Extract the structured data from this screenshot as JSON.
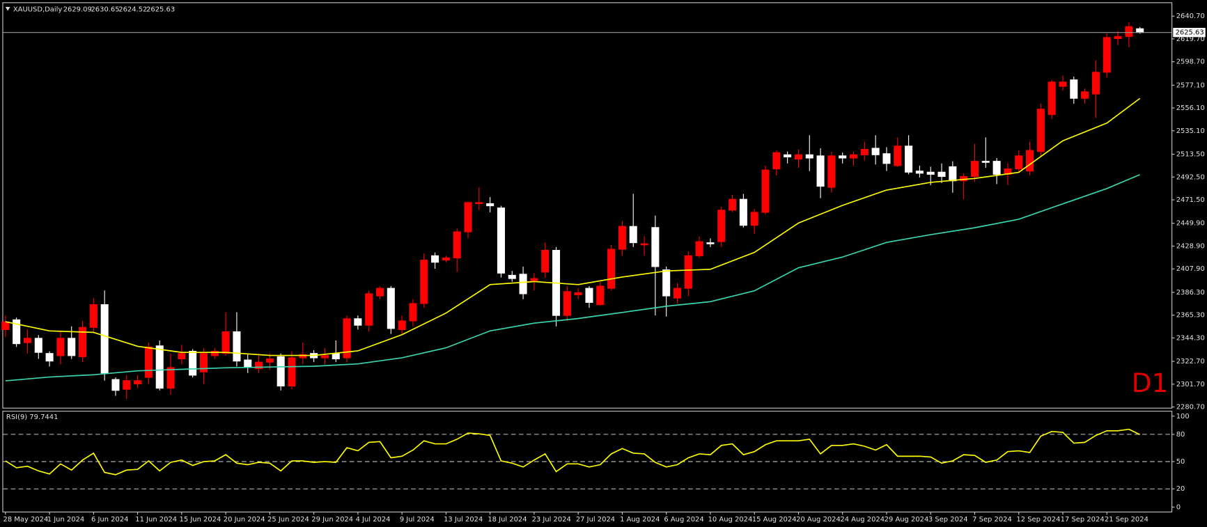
{
  "chart_data": [
    {
      "type": "candlestick",
      "title": "XAUUSD,Daily",
      "annotation": "D1",
      "categories": [
        "28 May 2024",
        null,
        null,
        null,
        "1 Jun 2024",
        null,
        null,
        null,
        "6 Jun 2024",
        null,
        null,
        null,
        "11 Jun 2024",
        null,
        null,
        null,
        "15 Jun 2024",
        null,
        null,
        null,
        "20 Jun 2024",
        null,
        null,
        null,
        "25 Jun 2024",
        null,
        null,
        null,
        "29 Jun 2024",
        null,
        null,
        null,
        "4 Jul 2024",
        null,
        null,
        null,
        "9 Jul 2024",
        null,
        null,
        null,
        "13 Jul 2024",
        null,
        null,
        null,
        "18 Jul 2024",
        null,
        null,
        null,
        "23 Jul 2024",
        null,
        null,
        null,
        "27 Jul 2024",
        null,
        null,
        null,
        "1 Aug 2024",
        null,
        null,
        null,
        "6 Aug 2024",
        null,
        null,
        null,
        "10 Aug 2024",
        null,
        null,
        null,
        "15 Aug 2024",
        null,
        null,
        null,
        "20 Aug 2024",
        null,
        null,
        null,
        "24 Aug 2024",
        null,
        null,
        null,
        "29 Aug 2024",
        null,
        null,
        null,
        "3 Sep 2024",
        null,
        null,
        null,
        "7 Sep 2024",
        null,
        null,
        null,
        "12 Sep 2024",
        null,
        null,
        null,
        "17 Sep 2024",
        null,
        null,
        null,
        "21 Sep 2024",
        null,
        null,
        null
      ],
      "open": [
        2352,
        2361,
        2340,
        2344,
        2330,
        2328,
        2344,
        2327,
        2354,
        2375,
        2306,
        2297,
        2302,
        2308,
        2337,
        2298,
        2325,
        2332,
        2313,
        2328,
        2330,
        2350,
        2324,
        2316,
        2322,
        2327,
        2300,
        2326,
        2330,
        2326,
        2330,
        2326,
        2362,
        2356,
        2383,
        2390,
        2352,
        2360,
        2376,
        2420,
        2416,
        2418,
        2442,
        2468,
        2468,
        2464,
        2402,
        2403,
        2397,
        2405,
        2425,
        2365,
        2384,
        2390,
        2375,
        2390,
        2426,
        2447,
        2430,
        2446,
        2407,
        2381,
        2390,
        2420,
        2432,
        2433,
        2462,
        2472,
        2448,
        2460,
        2500,
        2513,
        2509,
        2513,
        2512,
        2483,
        2512,
        2510,
        2513,
        2519,
        2514,
        2503,
        2521,
        2498,
        2497,
        2497,
        2502,
        2489,
        2493,
        2507,
        2507,
        2495,
        2500,
        2498,
        2516,
        2550,
        2576,
        2582,
        2565,
        2569,
        2589,
        2620,
        2622,
        2629.09
      ],
      "high": [
        2365,
        2363,
        2352,
        2347,
        2332,
        2350,
        2355,
        2360,
        2381,
        2388,
        2308,
        2310,
        2310,
        2340,
        2342,
        2330,
        2338,
        2334,
        2335,
        2335,
        2368,
        2368,
        2330,
        2330,
        2330,
        2330,
        2332,
        2340,
        2333,
        2335,
        2342,
        2365,
        2365,
        2388,
        2392,
        2392,
        2365,
        2380,
        2422,
        2423,
        2420,
        2445,
        2470,
        2483,
        2474,
        2466,
        2406,
        2410,
        2404,
        2432,
        2428,
        2392,
        2390,
        2392,
        2396,
        2430,
        2452,
        2477,
        2438,
        2457,
        2410,
        2395,
        2424,
        2438,
        2436,
        2465,
        2476,
        2477,
        2463,
        2503,
        2517,
        2516,
        2518,
        2531,
        2519,
        2516,
        2515,
        2516,
        2525,
        2531,
        2520,
        2529,
        2531,
        2503,
        2502,
        2505,
        2507,
        2496,
        2523,
        2529,
        2510,
        2505,
        2517,
        2525,
        2560,
        2582,
        2586,
        2585,
        2574,
        2600,
        2625,
        2627,
        2635,
        2630.65
      ],
      "low": [
        2345,
        2336,
        2330,
        2325,
        2318,
        2320,
        2325,
        2322,
        2350,
        2305,
        2291,
        2288,
        2298,
        2302,
        2296,
        2292,
        2320,
        2308,
        2302,
        2325,
        2328,
        2318,
        2312,
        2312,
        2315,
        2296,
        2297,
        2320,
        2322,
        2320,
        2322,
        2322,
        2352,
        2350,
        2380,
        2348,
        2348,
        2355,
        2372,
        2408,
        2414,
        2405,
        2436,
        2462,
        2460,
        2400,
        2396,
        2380,
        2388,
        2400,
        2355,
        2360,
        2380,
        2372,
        2374,
        2388,
        2420,
        2428,
        2420,
        2365,
        2364,
        2376,
        2383,
        2418,
        2428,
        2428,
        2460,
        2446,
        2440,
        2458,
        2494,
        2505,
        2501,
        2498,
        2473,
        2478,
        2505,
        2503,
        2508,
        2504,
        2498,
        2502,
        2495,
        2492,
        2485,
        2487,
        2478,
        2472,
        2488,
        2501,
        2486,
        2485,
        2497,
        2494,
        2512,
        2546,
        2572,
        2560,
        2560,
        2547,
        2584,
        2614,
        2612,
        2624.52
      ],
      "close": [
        2359,
        2339,
        2344,
        2331,
        2323,
        2344,
        2328,
        2354,
        2375,
        2312,
        2296,
        2305,
        2305,
        2336,
        2298,
        2317,
        2330,
        2310,
        2330,
        2332,
        2350,
        2323,
        2318,
        2322,
        2325,
        2300,
        2326,
        2329,
        2326,
        2328,
        2325,
        2362,
        2356,
        2385,
        2390,
        2353,
        2360,
        2376,
        2416,
        2414,
        2418,
        2442,
        2469,
        2469,
        2466,
        2404,
        2399,
        2385,
        2399,
        2425,
        2365,
        2387,
        2386,
        2377,
        2392,
        2426,
        2447,
        2432,
        2431,
        2410,
        2383,
        2390,
        2420,
        2433,
        2431,
        2462,
        2472,
        2448,
        2460,
        2499,
        2515,
        2511,
        2513,
        2510,
        2484,
        2512,
        2510,
        2513,
        2518,
        2513,
        2505,
        2521,
        2497,
        2496,
        2495,
        2493,
        2489,
        2493,
        2507,
        2506,
        2495,
        2500,
        2512,
        2517,
        2555,
        2580,
        2580,
        2565,
        2571,
        2589,
        2621,
        2622,
        2631,
        2625.63
      ],
      "up_color": "#ff0000",
      "down_color": "#ffffff",
      "series": [
        {
          "color": "#ffff00",
          "x": [
            0,
            4,
            8,
            12,
            16,
            20,
            24,
            28,
            32,
            36,
            40,
            44,
            48,
            52,
            56,
            60,
            64,
            68,
            72,
            76,
            80,
            84,
            88,
            92,
            96,
            100,
            103
          ],
          "values": [
            2359.3,
            2350.8,
            2349.4,
            2336.6,
            2331.0,
            2331.0,
            2328.2,
            2328.2,
            2332.4,
            2347.3,
            2367.2,
            2393.4,
            2396.2,
            2393.4,
            2400.4,
            2406.0,
            2407.5,
            2423.1,
            2450.1,
            2466.4,
            2480.5,
            2487.6,
            2491.2,
            2496.8,
            2525.9,
            2542.2,
            2564.9
          ]
        },
        {
          "color": "#3ad6b0",
          "x": [
            0,
            4,
            8,
            12,
            16,
            20,
            24,
            28,
            32,
            36,
            40,
            44,
            48,
            52,
            56,
            60,
            64,
            68,
            72,
            76,
            80,
            84,
            88,
            92,
            96,
            100,
            103
          ],
          "values": [
            2304.8,
            2308.3,
            2310.4,
            2314.0,
            2315.4,
            2316.8,
            2317.5,
            2318.2,
            2320.4,
            2326.0,
            2335.2,
            2350.8,
            2357.9,
            2362.2,
            2367.8,
            2373.5,
            2377.7,
            2387.7,
            2408.9,
            2418.8,
            2432.3,
            2439.4,
            2445.8,
            2453.6,
            2467.8,
            2481.9,
            2494.7
          ]
        }
      ],
      "ylim": [
        2280,
        2652
      ],
      "yticks": [
        {
          "value": 2640.7,
          "label": "2640.70"
        },
        {
          "value": 2619.7,
          "label": "2619.70"
        },
        {
          "value": 2598.7,
          "label": "2598.70"
        },
        {
          "value": 2577.1,
          "label": "2577.10"
        },
        {
          "value": 2556.1,
          "label": "2556.10"
        },
        {
          "value": 2535.1,
          "label": "2535.10"
        },
        {
          "value": 2513.5,
          "label": "2513.50"
        },
        {
          "value": 2492.5,
          "label": "2492.50"
        },
        {
          "value": 2471.5,
          "label": "2471.50"
        },
        {
          "value": 2449.9,
          "label": "2449.90"
        },
        {
          "value": 2428.9,
          "label": "2428.90"
        },
        {
          "value": 2407.9,
          "label": "2407.90"
        },
        {
          "value": 2386.3,
          "label": "2386.30"
        },
        {
          "value": 2365.3,
          "label": "2365.30"
        },
        {
          "value": 2344.3,
          "label": "2344.30"
        },
        {
          "value": 2322.7,
          "label": "2322.70"
        },
        {
          "value": 2301.7,
          "label": "2301.70"
        },
        {
          "value": 2280.7,
          "label": "2280.70"
        }
      ]
    },
    {
      "type": "line",
      "title": "RSI(9) 79.7441",
      "color": "#ffff00",
      "values": [
        50.8,
        43.2,
        44.9,
        39.8,
        36.4,
        47.5,
        40.7,
        51.7,
        59.3,
        38.1,
        35.6,
        40.7,
        41.5,
        50.8,
        39.8,
        49.2,
        51.7,
        45.8,
        50.0,
        50.8,
        57.6,
        48.3,
        46.6,
        49.2,
        48.3,
        39.8,
        50.8,
        50.8,
        49.2,
        50.0,
        49.2,
        65.3,
        61.9,
        71.2,
        72.0,
        54.2,
        55.9,
        62.7,
        72.9,
        69.5,
        69.5,
        74.6,
        81.4,
        80.5,
        78.8,
        50.8,
        48.3,
        44.1,
        51.7,
        58.5,
        39.0,
        47.5,
        47.5,
        44.1,
        46.6,
        58.5,
        64.4,
        59.3,
        58.5,
        49.2,
        44.1,
        46.6,
        54.2,
        58.5,
        57.6,
        67.8,
        69.5,
        57.6,
        61.0,
        68.6,
        72.9,
        72.9,
        72.9,
        74.6,
        58.5,
        67.8,
        67.8,
        69.5,
        66.9,
        62.7,
        68.6,
        55.9,
        55.9,
        55.9,
        55.1,
        48.3,
        50.8,
        57.6,
        56.8,
        49.2,
        51.7,
        61.0,
        61.9,
        60.0,
        78.0,
        83.1,
        82.2,
        70.3,
        71.2,
        78.8,
        83.9,
        83.9,
        85.6,
        79.7441
      ],
      "ylim": [
        -5,
        105
      ],
      "yticks": [
        0,
        20,
        50,
        80,
        100
      ],
      "levels": [
        20,
        50,
        80
      ]
    }
  ]
}
